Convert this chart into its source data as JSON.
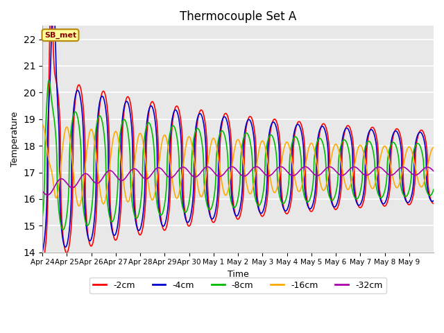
{
  "title": "Thermocouple Set A",
  "xlabel": "Time",
  "ylabel": "Temperature",
  "ylim": [
    14.0,
    22.5
  ],
  "yticks": [
    14.0,
    15.0,
    16.0,
    17.0,
    18.0,
    19.0,
    20.0,
    21.0,
    22.0
  ],
  "background_color": "#e8e8e8",
  "fig_background": "#ffffff",
  "annotation_text": "SB_met",
  "annotation_color": "#8b0000",
  "annotation_bg": "#ffff99",
  "annotation_border": "#b8860b",
  "series_colors": {
    "-2cm": "#ff0000",
    "-4cm": "#0000cc",
    "-8cm": "#00bb00",
    "-16cm": "#ffaa00",
    "-32cm": "#aa00aa"
  },
  "series_lw": 1.2,
  "day_labels": [
    "Apr 24",
    "Apr 25",
    "Apr 26",
    "Apr 27",
    "Apr 28",
    "Apr 29",
    "Apr 30",
    "May 1",
    "May 2",
    "May 3",
    "May 4",
    "May 5",
    "May 6",
    "May 7",
    "May 8",
    "May 9"
  ]
}
